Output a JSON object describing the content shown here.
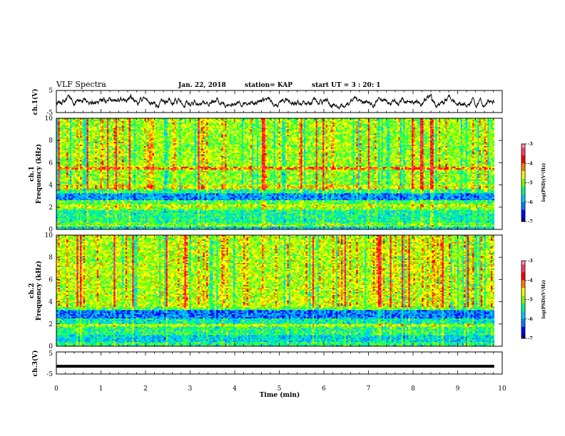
{
  "header": {
    "title": "VLF Spectra",
    "date": "Jan. 22, 2018",
    "station": "station= KAP",
    "start_ut": "start UT =  3 : 20: 1"
  },
  "colormap": [
    "#000080",
    "#0000ff",
    "#0080ff",
    "#00c8ff",
    "#00ff80",
    "#80ff00",
    "#ffff00",
    "#ff8000",
    "#ff0000",
    "#ff3c64",
    "#ff8caa",
    "#ffffff"
  ],
  "chart_data": [
    {
      "type": "line",
      "name": "ch1-waveform",
      "ylabel": "ch.1(V)",
      "ylim": [
        -5,
        5
      ],
      "yticks": [
        "5",
        "-5"
      ],
      "xlim": [
        0,
        10
      ],
      "xmax_data": 9.82,
      "description_level": {
        "mean": -0.3,
        "range": [
          -3.5,
          3.5
        ]
      }
    },
    {
      "type": "heatmap",
      "name": "ch1-spectrogram",
      "ylabel": "ch.1",
      "ylabel2": "Frequency (kHz)",
      "ylim": [
        0,
        10
      ],
      "yticks": [
        "0",
        "2",
        "4",
        "6",
        "8",
        "10"
      ],
      "xlim": [
        0,
        10
      ],
      "xmax_data": 9.82,
      "band_profile_log_psd": [
        {
          "f0": 0,
          "f1": 0.25,
          "v": -5.6
        },
        {
          "f0": 0.25,
          "f1": 0.4,
          "v": -4.6
        },
        {
          "f0": 0.4,
          "f1": 0.6,
          "v": -5.0
        },
        {
          "f0": 0.6,
          "f1": 1.8,
          "v": -5.3
        },
        {
          "f0": 1.8,
          "f1": 2.0,
          "v": -4.8
        },
        {
          "f0": 2.0,
          "f1": 2.3,
          "v": -4.5
        },
        {
          "f0": 2.3,
          "f1": 2.6,
          "v": -5.0
        },
        {
          "f0": 2.6,
          "f1": 3.2,
          "v": -6.0
        },
        {
          "f0": 3.2,
          "f1": 3.6,
          "v": -5.2
        },
        {
          "f0": 3.6,
          "f1": 4.0,
          "v": -4.4
        },
        {
          "f0": 4.0,
          "f1": 5.4,
          "v": -4.8
        },
        {
          "f0": 5.4,
          "f1": 5.6,
          "v": -3.9
        },
        {
          "f0": 5.6,
          "f1": 10.0,
          "v": -4.7
        }
      ],
      "colorbar": {
        "label": "log(PSD)(V²/Hz)",
        "ticks": [
          "-3",
          "-4",
          "-5",
          "-6",
          "-7"
        ],
        "range": [
          -7,
          -3
        ]
      }
    },
    {
      "type": "heatmap",
      "name": "ch2-spectrogram",
      "ylabel": "ch.2",
      "ylabel2": "Frequency (kHz)",
      "ylim": [
        0,
        10
      ],
      "yticks": [
        "0",
        "2",
        "4",
        "6",
        "8",
        "10"
      ],
      "xlim": [
        0,
        10
      ],
      "xmax_data": 9.82,
      "band_profile_log_psd": [
        {
          "f0": 0,
          "f1": 0.4,
          "v": -5.2
        },
        {
          "f0": 0.4,
          "f1": 1.0,
          "v": -5.6
        },
        {
          "f0": 1.0,
          "f1": 1.8,
          "v": -5.2
        },
        {
          "f0": 1.8,
          "f1": 2.0,
          "v": -4.6
        },
        {
          "f0": 2.0,
          "f1": 2.5,
          "v": -5.4
        },
        {
          "f0": 2.5,
          "f1": 3.2,
          "v": -6.1
        },
        {
          "f0": 3.2,
          "f1": 3.5,
          "v": -5.0
        },
        {
          "f0": 3.5,
          "f1": 10.0,
          "v": -4.6
        }
      ],
      "colorbar": {
        "label": "log(PSD)(V²/Hz)",
        "ticks": [
          "-3",
          "-4",
          "-5",
          "-6",
          "-7"
        ],
        "range": [
          -7,
          -3
        ]
      }
    },
    {
      "type": "line",
      "name": "ch3-waveform",
      "ylabel": "ch.3(V)",
      "ylim": [
        -5,
        5
      ],
      "yticks": [
        "5",
        "-5"
      ],
      "xlim": [
        0,
        10
      ],
      "xmax_data": 9.82,
      "xticks": [
        "0",
        "1",
        "2",
        "3",
        "4",
        "5",
        "6",
        "7",
        "8",
        "9",
        "10"
      ],
      "xlabel": "Time (min)",
      "constant_value": -1.5
    }
  ]
}
